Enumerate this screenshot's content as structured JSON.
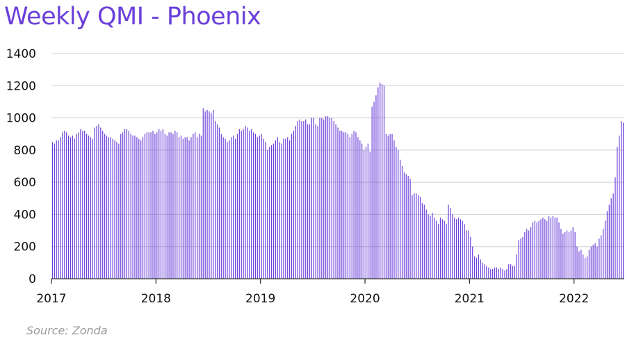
{
  "title": "Weekly QMI - Phoenix",
  "source": "Source: Zonda",
  "chart_data": {
    "type": "bar",
    "title": "Weekly QMI - Phoenix",
    "xlabel": "",
    "ylabel": "",
    "ylim": [
      0,
      1400
    ],
    "yticks": [
      "0",
      "200",
      "400",
      "600",
      "800",
      "1000",
      "1200",
      "1400"
    ],
    "xticks": [
      "2017",
      "2018",
      "2019",
      "2020",
      "2021",
      "2022"
    ],
    "grid": true,
    "colors": {
      "bar": "#6a3fd9",
      "grid": "#d0d0d0",
      "axis": "#333333"
    },
    "series": [
      {
        "values": [
          850,
          840,
          860,
          860,
          880,
          910,
          920,
          910,
          890,
          880,
          890,
          870,
          900,
          910,
          930,
          920,
          920,
          900,
          890,
          880,
          870,
          940,
          950,
          960,
          940,
          920,
          900,
          890,
          880,
          880,
          870,
          860,
          850,
          840,
          900,
          910,
          930,
          930,
          920,
          900,
          890,
          890,
          880,
          870,
          860,
          880,
          900,
          910,
          910,
          910,
          920,
          900,
          910,
          930,
          920,
          930,
          900,
          890,
          910,
          910,
          900,
          920,
          910,
          880,
          890,
          870,
          880,
          880,
          860,
          880,
          900,
          910,
          880,
          900,
          890,
          1060,
          1040,
          1050,
          1040,
          1030,
          1050,
          980,
          960,
          940,
          900,
          880,
          870,
          850,
          860,
          880,
          890,
          870,
          900,
          930,
          920,
          930,
          950,
          940,
          920,
          930,
          910,
          900,
          880,
          890,
          900,
          870,
          850,
          800,
          820,
          830,
          840,
          860,
          880,
          850,
          840,
          870,
          870,
          880,
          860,
          900,
          920,
          950,
          980,
          990,
          980,
          980,
          990,
          960,
          960,
          1000,
          1000,
          960,
          950,
          1000,
          1000,
          990,
          1010,
          1010,
          1000,
          1000,
          980,
          960,
          940,
          920,
          920,
          910,
          910,
          900,
          880,
          900,
          920,
          910,
          880,
          860,
          840,
          800,
          820,
          840,
          790,
          1070,
          1100,
          1140,
          1190,
          1220,
          1210,
          1200,
          900,
          890,
          900,
          900,
          860,
          820,
          800,
          740,
          700,
          660,
          650,
          640,
          620,
          520,
          530,
          530,
          520,
          510,
          470,
          460,
          430,
          400,
          390,
          410,
          380,
          360,
          340,
          380,
          370,
          360,
          340,
          460,
          440,
          400,
          380,
          370,
          380,
          370,
          360,
          340,
          300,
          300,
          260,
          200,
          140,
          130,
          150,
          120,
          100,
          90,
          80,
          70,
          60,
          60,
          70,
          70,
          60,
          70,
          60,
          50,
          60,
          90,
          90,
          80,
          80,
          150,
          240,
          250,
          260,
          290,
          310,
          300,
          320,
          350,
          360,
          350,
          360,
          370,
          380,
          370,
          360,
          390,
          380,
          390,
          380,
          380,
          350,
          310,
          280,
          290,
          300,
          290,
          300,
          320,
          290,
          200,
          170,
          180,
          150,
          130,
          140,
          180,
          200,
          210,
          220,
          200,
          250,
          270,
          310,
          360,
          420,
          460,
          500,
          530,
          630,
          820,
          890,
          980,
          970
        ]
      }
    ]
  }
}
